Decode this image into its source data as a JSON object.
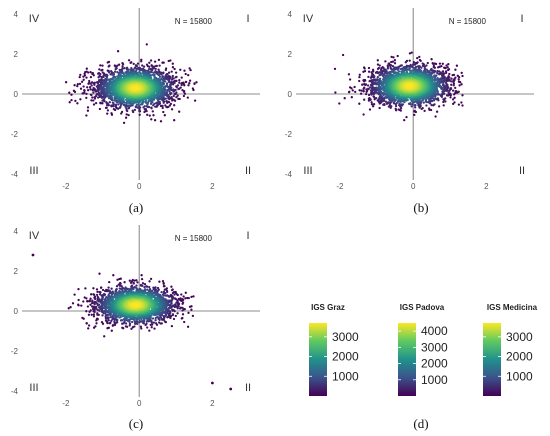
{
  "chart_data": [
    {
      "type": "scatter",
      "panel_label": "(a)",
      "annotation": "N = 15800",
      "quadrant_labels": [
        "I",
        "II",
        "III",
        "IV"
      ],
      "xlim": [
        -3.2,
        3.3
      ],
      "ylim": [
        -4.3,
        4.3
      ],
      "xticks": [
        "-2",
        "0",
        "2"
      ],
      "yticks": [
        "4",
        "2",
        "0",
        "-2",
        "-4"
      ],
      "grid": false,
      "cloud": {
        "center": [
          -0.1,
          0.3
        ],
        "spread": [
          0.55,
          0.55
        ],
        "x_range": [
          -2.3,
          1.6
        ],
        "y_range": [
          -1.6,
          2.6
        ],
        "n_points": 15800
      }
    },
    {
      "type": "scatter",
      "panel_label": "(b)",
      "annotation": "N = 15800",
      "quadrant_labels": [
        "I",
        "II",
        "III",
        "IV"
      ],
      "xlim": [
        -3.2,
        3.3
      ],
      "ylim": [
        -4.3,
        4.3
      ],
      "xticks": [
        "-2",
        "0",
        "2"
      ],
      "yticks": [
        "4",
        "2",
        "0",
        "-2",
        "-4"
      ],
      "grid": false,
      "cloud": {
        "center": [
          -0.1,
          0.4
        ],
        "spread": [
          0.55,
          0.55
        ],
        "x_range": [
          -2.2,
          1.4
        ],
        "y_range": [
          -2.0,
          2.5
        ],
        "n_points": 15800
      }
    },
    {
      "type": "scatter",
      "panel_label": "(c)",
      "annotation": "N = 15800",
      "quadrant_labels": [
        "I",
        "II",
        "III",
        "IV"
      ],
      "xlim": [
        -3.2,
        3.3
      ],
      "ylim": [
        -4.3,
        4.3
      ],
      "xticks": [
        "-2",
        "0",
        "2"
      ],
      "yticks": [
        "4",
        "2",
        "0",
        "-2",
        "-4"
      ],
      "grid": false,
      "cloud": {
        "center": [
          -0.1,
          0.3
        ],
        "spread": [
          0.55,
          0.5
        ],
        "x_range": [
          -2.3,
          1.5
        ],
        "y_range": [
          -1.8,
          2.0
        ],
        "n_points": 15800
      },
      "outliers": [
        [
          -2.9,
          2.8
        ],
        [
          2.0,
          -3.6
        ],
        [
          2.5,
          -3.9
        ]
      ]
    }
  ],
  "colorbars": [
    {
      "title": "IGS Graz",
      "ticks": [
        "3000",
        "2000",
        "1000"
      ],
      "range": [
        0,
        3700
      ]
    },
    {
      "title": "IGS Padova",
      "ticks": [
        "4000",
        "3000",
        "2000",
        "1000"
      ],
      "range": [
        0,
        4500
      ]
    },
    {
      "title": "IGS Medicina",
      "ticks": [
        "3000",
        "2000",
        "1000"
      ],
      "range": [
        0,
        3700
      ]
    }
  ],
  "legend_panel_label": "(d)",
  "colors": {
    "viridis": [
      "#440154",
      "#3b528b",
      "#21918c",
      "#5ec962",
      "#fde725"
    ]
  }
}
